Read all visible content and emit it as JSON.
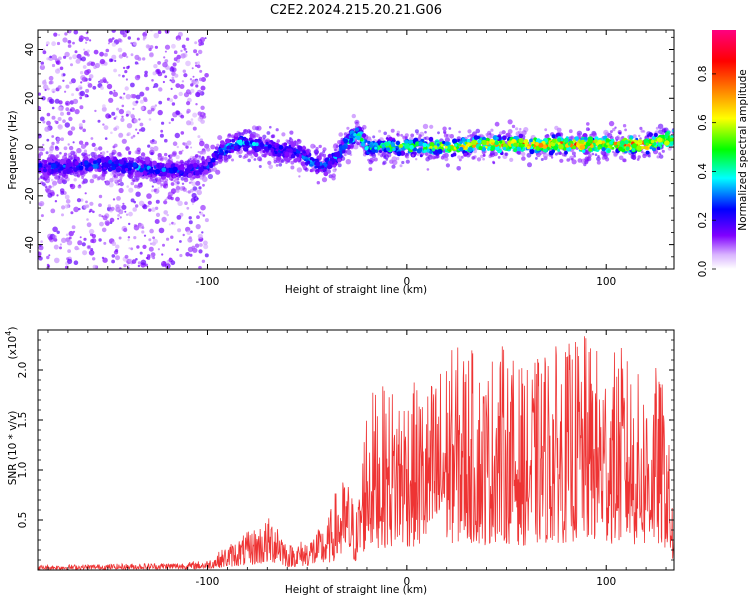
{
  "title": "C2E2.2024.215.20.21.G06",
  "chart_data": [
    {
      "type": "heatmap",
      "xlabel": "Height of straight line (km)",
      "ylabel": "Frequency (Hz)",
      "xlim": [
        -185,
        134
      ],
      "ylim": [
        -50,
        48
      ],
      "xticks": [
        -100,
        0,
        100
      ],
      "xtick_labels": [
        "-100",
        "0",
        "100"
      ],
      "yticks": [
        -40,
        -20,
        0,
        20,
        40
      ],
      "ytick_labels": [
        "-40",
        "-20",
        "0",
        "20",
        "40"
      ],
      "colorbar": {
        "label": "Normalized spectral amplitude",
        "range": [
          0,
          0.98
        ],
        "ticks": [
          0.0,
          0.2,
          0.4,
          0.6,
          0.8
        ],
        "tick_labels": [
          "0.0",
          "0.2",
          "0.4",
          "0.6",
          "0.8"
        ],
        "colors": [
          "#ffffff",
          "#d9b3ff",
          "#8000ff",
          "#0000ff",
          "#00ffff",
          "#00ff00",
          "#ffff00",
          "#ff8000",
          "#ff0000",
          "#ff0080"
        ]
      },
      "ridge": {
        "x": [
          -185,
          -170,
          -150,
          -130,
          -110,
          -100,
          -95,
          -85,
          -75,
          -65,
          -55,
          -48,
          -42,
          -35,
          -30,
          -25,
          -20,
          -10,
          0,
          20,
          40,
          60,
          80,
          100,
          120,
          134
        ],
        "frequency": [
          -8,
          -8,
          -7,
          -9,
          -10,
          -8,
          -3,
          2,
          1,
          -1,
          -2,
          -6,
          -8,
          -4,
          2,
          6,
          0,
          0,
          0,
          0,
          1,
          1,
          1,
          1,
          1,
          4
        ],
        "peak_amplitude": [
          0.3,
          0.3,
          0.35,
          0.35,
          0.3,
          0.3,
          0.35,
          0.4,
          0.35,
          0.3,
          0.3,
          0.35,
          0.35,
          0.35,
          0.45,
          0.5,
          0.45,
          0.55,
          0.6,
          0.7,
          0.75,
          0.8,
          0.8,
          0.85,
          0.85,
          0.8
        ]
      },
      "scatter_region_x": [
        -185,
        -100
      ]
    },
    {
      "type": "line",
      "xlabel": "Height of straight line (km)",
      "ylabel": "SNR (10 * v/v)",
      "scale_label": "(x10",
      "scale_exponent": "4",
      "scale_close": ")",
      "xlim": [
        -185,
        134
      ],
      "ylim": [
        0,
        2.4
      ],
      "xticks": [
        -100,
        0,
        100
      ],
      "xtick_labels": [
        "-100",
        "0",
        "100"
      ],
      "yticks": [
        0.5,
        1.0,
        1.5,
        2.0
      ],
      "ytick_labels": [
        "0.5",
        "1.0",
        "1.5",
        "2.0"
      ],
      "series": [
        {
          "color": "#ee3333",
          "envelope": {
            "x": [
              -185,
              -150,
              -110,
              -100,
              -90,
              -80,
              -70,
              -65,
              -60,
              -50,
              -40,
              -35,
              -30,
              -25,
              -20,
              -10,
              0,
              10,
              20,
              30,
              40,
              45,
              50,
              60,
              70,
              80,
              86,
              90,
              100,
              108,
              115,
              120,
              125,
              130,
              134
            ],
            "y": [
              0.05,
              0.06,
              0.08,
              0.1,
              0.25,
              0.38,
              0.52,
              0.58,
              0.25,
              0.32,
              0.48,
              0.85,
              0.95,
              0.6,
              1.8,
              1.85,
              1.9,
              1.85,
              2.2,
              2.3,
              2.0,
              2.37,
              2.2,
              2.0,
              2.25,
              2.25,
              2.37,
              2.35,
              2.15,
              2.25,
              2.0,
              1.9,
              2.05,
              1.8,
              0.4
            ]
          }
        }
      ]
    }
  ]
}
